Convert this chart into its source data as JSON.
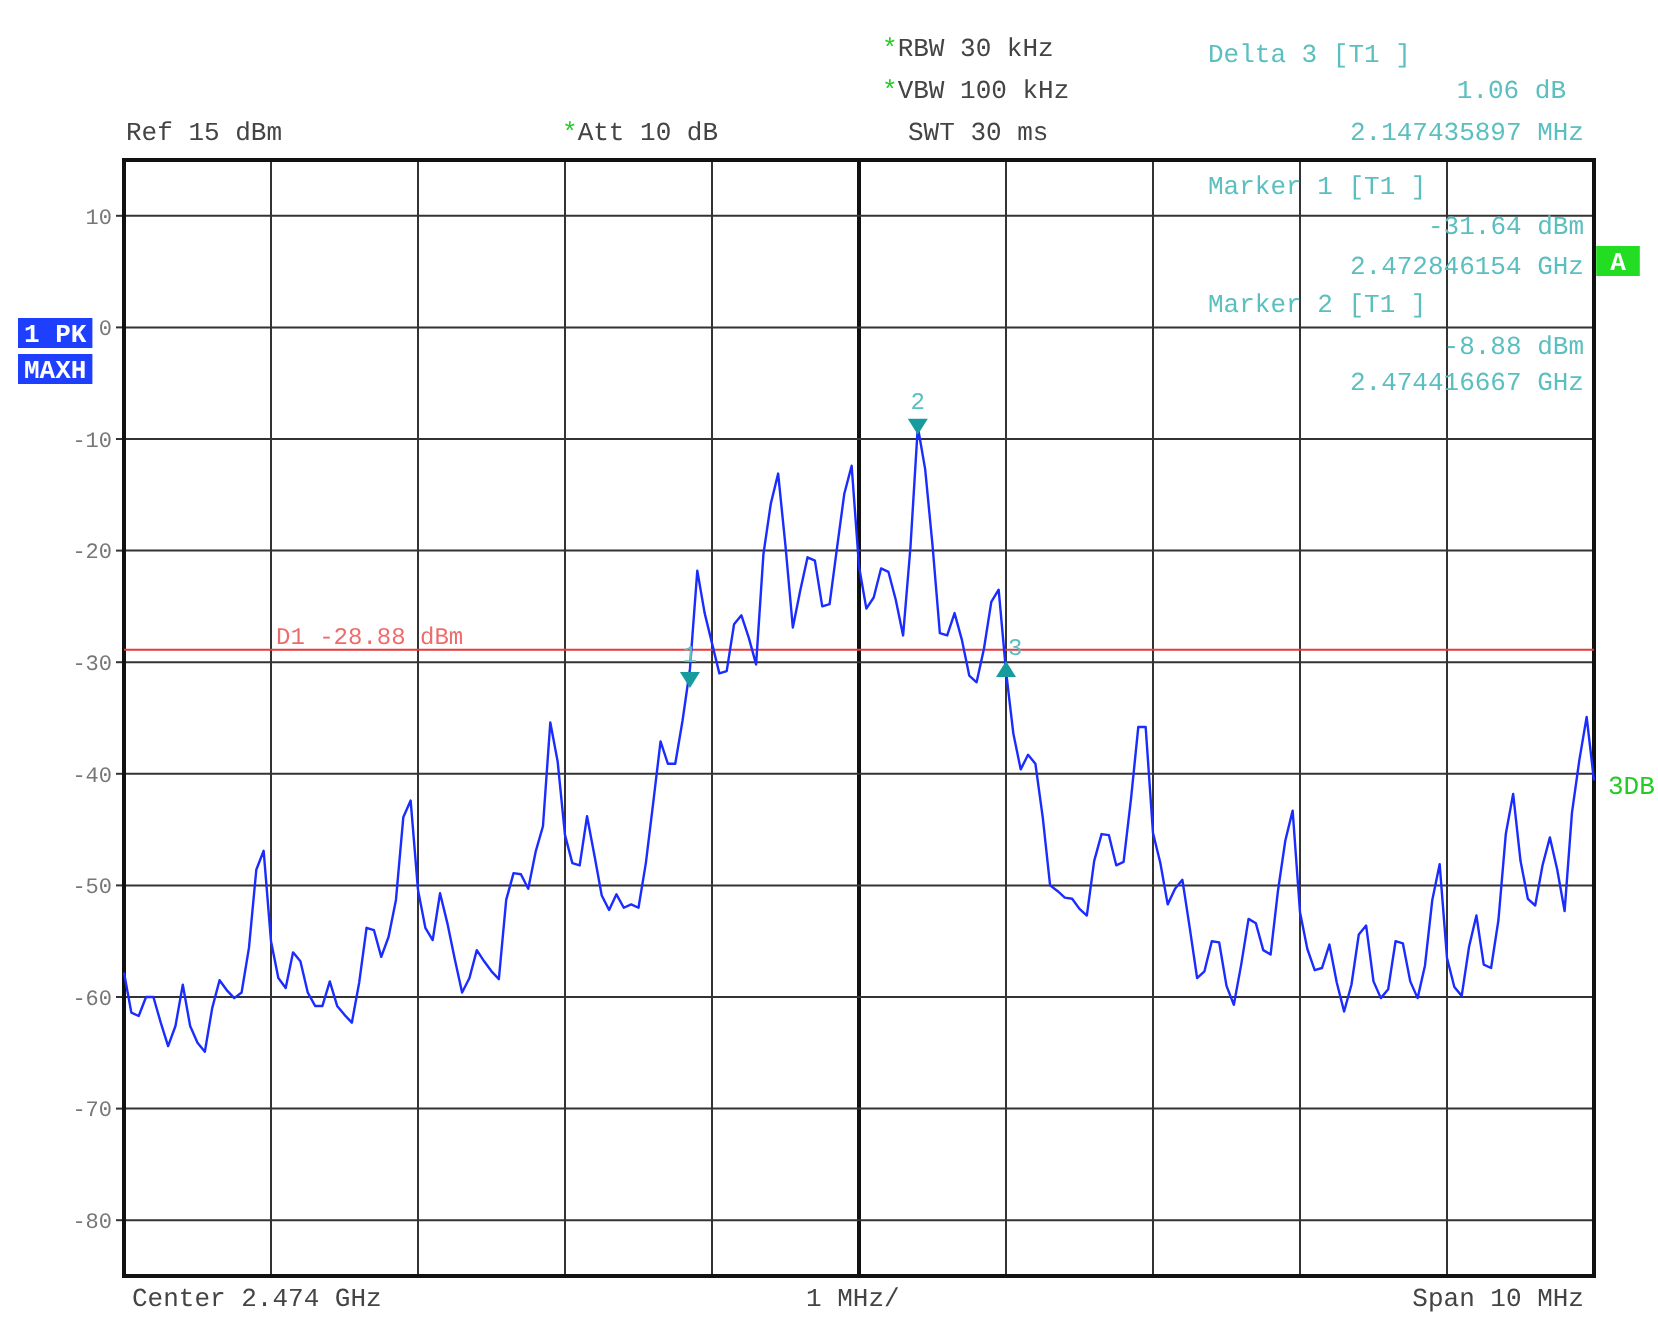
{
  "chart_data": {
    "type": "line",
    "grid": true,
    "marker": "none",
    "line_style": "solid",
    "categories": [
      null,
      null,
      null,
      null,
      null,
      null,
      null,
      null,
      null,
      null,
      null,
      null,
      null,
      null,
      null,
      null,
      null,
      null,
      null,
      null,
      null,
      null,
      null,
      null,
      null,
      null,
      null,
      null,
      null,
      null,
      null,
      null,
      null,
      null,
      null,
      null,
      null,
      null,
      null,
      null,
      null,
      null,
      null,
      null,
      null,
      null,
      null,
      null,
      null,
      null,
      null,
      null,
      null,
      null,
      null,
      null,
      null,
      null,
      null,
      null,
      null,
      null,
      null,
      null,
      null,
      null,
      null,
      null,
      null,
      null,
      null,
      null,
      null,
      null,
      null,
      null,
      null,
      null,
      null,
      null,
      null,
      null,
      null,
      null,
      null,
      null,
      null,
      null,
      null,
      null,
      null,
      null,
      null,
      null,
      null,
      null,
      null,
      null,
      null,
      null,
      null,
      null,
      null,
      null,
      null,
      null,
      null,
      null,
      null,
      null,
      null,
      null,
      null,
      null,
      null,
      null,
      null,
      null,
      null,
      null,
      null,
      null,
      null,
      null,
      null,
      null,
      null,
      null,
      null,
      null,
      null,
      null,
      null,
      null,
      null,
      null,
      null,
      null,
      null,
      null,
      null,
      null,
      null,
      null,
      null,
      null,
      null,
      null,
      null,
      null,
      null,
      null,
      null,
      null,
      null,
      null,
      null,
      null,
      null,
      null,
      null,
      null,
      null,
      null,
      null,
      null,
      null,
      null,
      null,
      null,
      null,
      null,
      null,
      null,
      null,
      null,
      null,
      null,
      null,
      null,
      null,
      null,
      null,
      null,
      null,
      null,
      null,
      null,
      null,
      null,
      null,
      null,
      null,
      null,
      null,
      null,
      null,
      null,
      null,
      null,
      null
    ],
    "ylim": [
      -85,
      15
    ],
    "yticks": [
      -80,
      -70,
      -60,
      -50,
      -40,
      -30,
      -20,
      -10,
      0,
      10
    ],
    "series": [
      {
        "color": "#1a2cff",
        "values": [
          -57.8,
          -61.4,
          -61.7,
          -60,
          -60,
          -62.3,
          -64.4,
          -62.6,
          -58.9,
          -62.6,
          -64.1,
          -64.9,
          -61,
          -58.5,
          -59.4,
          -60.1,
          -59.6,
          -55.6,
          -48.6,
          -46.9,
          -55,
          -58.3,
          -59.2,
          -56,
          -56.8,
          -59.6,
          -60.8,
          -60.8,
          -58.6,
          -60.8,
          -61.6,
          -62.3,
          -58.7,
          -53.8,
          -54,
          -56.4,
          -54.6,
          -51.3,
          -43.9,
          -42.4,
          -50.4,
          -53.8,
          -54.9,
          -50.7,
          -53.4,
          -56.6,
          -59.6,
          -58.3,
          -55.8,
          -56.8,
          -57.7,
          -58.4,
          -51.3,
          -48.9,
          -49,
          -50.3,
          -47,
          -44.7,
          -35.4,
          -38.9,
          -45.5,
          -48,
          -48.2,
          -43.8,
          -47.3,
          -50.9,
          -52.2,
          -50.8,
          -52,
          -51.7,
          -52,
          -48,
          -42.6,
          -37.1,
          -39.1,
          -39.1,
          -35.2,
          -30.6,
          -21.8,
          -25.6,
          -28.3,
          -31,
          -30.8,
          -26.6,
          -25.8,
          -27.8,
          -30.2,
          -20.3,
          -15.8,
          -13.1,
          -19.6,
          -26.9,
          -23.6,
          -20.6,
          -20.9,
          -25,
          -24.8,
          -19.8,
          -14.9,
          -12.4,
          -21.4,
          -25.2,
          -24.2,
          -21.6,
          -21.9,
          -24.4,
          -27.6,
          -19.7,
          -8.9,
          -12.7,
          -19.5,
          -27.4,
          -27.6,
          -25.6,
          -28,
          -31.2,
          -31.8,
          -28.8,
          -24.6,
          -23.5,
          -30.8,
          -36.4,
          -39.6,
          -38.3,
          -39.1,
          -43.9,
          -50,
          -50.5,
          -51.1,
          -51.2,
          -52.1,
          -52.7,
          -47.8,
          -45.4,
          -45.5,
          -48.2,
          -47.9,
          -42.3,
          -35.8,
          -35.8,
          -45.3,
          -48,
          -51.7,
          -50.3,
          -49.5,
          -53.8,
          -58.3,
          -57.7,
          -55,
          -55.1,
          -59,
          -60.7,
          -57.1,
          -53,
          -53.4,
          -55.8,
          -56.2,
          -50.5,
          -46,
          -43.3,
          -52.4,
          -55.7,
          -57.6,
          -57.4,
          -55.3,
          -58.7,
          -61.3,
          -58.9,
          -54.4,
          -53.6,
          -58.6,
          -60.1,
          -59.3,
          -55,
          -55.2,
          -58.6,
          -60.1,
          -57.2,
          -51.3,
          -48.1,
          -56.5,
          -59.1,
          -59.9,
          -55.5,
          -52.7,
          -57.1,
          -57.4,
          -53.1,
          -45.4,
          -41.8,
          -47.8,
          -51.2,
          -51.8,
          -48.2,
          -45.7,
          -48.6,
          -52.3,
          -43.5,
          -38.8,
          -34.9,
          -40.6
        ]
      },
      {
        "type": "scatter",
        "color": "#169c9c",
        "marker": "triangle",
        "values": [
          null,
          null,
          null,
          null,
          null,
          null,
          null,
          null,
          null,
          null,
          null,
          null,
          null,
          null,
          null,
          null,
          null,
          null,
          null,
          null,
          null,
          null,
          null,
          null,
          null,
          null,
          null,
          null,
          null,
          null,
          null,
          null,
          null,
          null,
          null,
          null,
          null,
          null,
          null,
          null,
          null,
          null,
          null,
          null,
          null,
          null,
          null,
          null,
          null,
          null,
          null,
          null,
          null,
          null,
          null,
          null,
          null,
          null,
          null,
          null,
          null,
          null,
          null,
          null,
          null,
          null,
          null,
          null,
          null,
          null,
          null,
          null,
          null,
          null,
          null,
          null,
          null,
          -31.6,
          null,
          null,
          null,
          null,
          null,
          null,
          null,
          null,
          null,
          null,
          null,
          null,
          null,
          null,
          null,
          null,
          null,
          null,
          null,
          null,
          null,
          null,
          null,
          null,
          null,
          null,
          null,
          null,
          null,
          null,
          -8.9,
          null,
          null,
          null,
          null,
          null,
          null,
          null,
          null,
          null,
          null,
          null,
          -30.6,
          null,
          null,
          null,
          null,
          null,
          null,
          null,
          null,
          null,
          null,
          null,
          null,
          null,
          null,
          null,
          null,
          null,
          null,
          null,
          null,
          null,
          null,
          null,
          null,
          null,
          null,
          null,
          null,
          null,
          null,
          null,
          null,
          null,
          null,
          null,
          null,
          null,
          null,
          null,
          null,
          null,
          null,
          null,
          null,
          null,
          null,
          null,
          null,
          null,
          null,
          null,
          null,
          null,
          null,
          null,
          null,
          null,
          null,
          null,
          null,
          null,
          null,
          null,
          null,
          null,
          null,
          null,
          null,
          null,
          null,
          null,
          null,
          null,
          null,
          null,
          null,
          null,
          null,
          null,
          null
        ]
      }
    ],
    "ref_lines": [
      {
        "axis": "y",
        "value": -28.88,
        "label": "D1 -28.88 dBm",
        "color": "#e83a3a",
        "line_style": "solid"
      }
    ],
    "annotations": [
      "*RBW 30 kHz",
      "*VBW 100 kHz",
      "Ref 15 dBm",
      "*Att 10 dB",
      "SWT 30 ms",
      "Delta 3 [T1 ]",
      "1.06 dB",
      "2.147435897 MHz",
      "Marker 1 [T1 ]",
      "-31.64 dBm",
      "2.472846154 GHz",
      "Marker 2 [T1 ]",
      "-8.88 dBm",
      "2.474416667 GHz",
      "1 PK",
      "MAXH",
      "A",
      "3DB",
      "Center 2.474 GHz",
      "1 MHz/",
      "Span 10 MHz",
      "1",
      "2",
      "3"
    ]
  }
}
